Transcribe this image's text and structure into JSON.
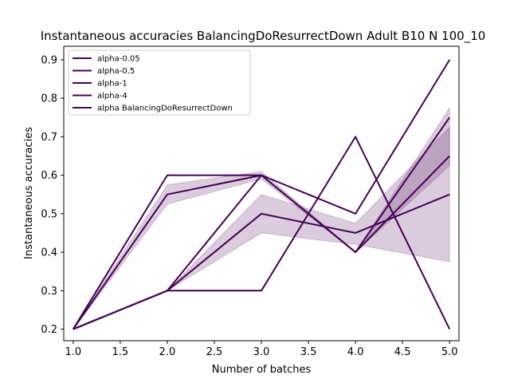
{
  "chart_data": {
    "type": "line",
    "title": "Instantaneous accuracies BalancingDoResurrectDown Adult B10 N 100_10",
    "xlabel": "Number of batches",
    "ylabel": "Instantaneous accuracies",
    "xlim": [
      0.9,
      5.1
    ],
    "ylim": [
      0.17,
      0.935
    ],
    "xticks": [
      1.0,
      1.5,
      2.0,
      2.5,
      3.0,
      3.5,
      4.0,
      4.5,
      5.0
    ],
    "xtick_labels": [
      "1.0",
      "1.5",
      "2.0",
      "2.5",
      "3.0",
      "3.5",
      "4.0",
      "4.5",
      "5.0"
    ],
    "yticks": [
      0.2,
      0.3,
      0.4,
      0.5,
      0.6,
      0.7,
      0.8,
      0.9
    ],
    "ytick_labels": [
      "0.2",
      "0.3",
      "0.4",
      "0.5",
      "0.6",
      "0.7",
      "0.8",
      "0.9"
    ],
    "grid": false,
    "legend_position": "top-left",
    "line_color": "#440154",
    "band_color": "#440154",
    "x": [
      1,
      2,
      3,
      4,
      5
    ],
    "series": [
      {
        "name": "alpha-0.05",
        "values": [
          0.2,
          0.55,
          0.6,
          0.4,
          0.75
        ]
      },
      {
        "name": "alpha-0.5",
        "values": [
          0.2,
          0.6,
          0.6,
          0.4,
          0.65
        ]
      },
      {
        "name": "alpha-1",
        "values": [
          0.2,
          0.3,
          0.5,
          0.45,
          0.55
        ]
      },
      {
        "name": "alpha-4",
        "values": [
          0.2,
          0.3,
          0.3,
          0.7,
          0.2
        ]
      },
      {
        "name": "alpha BalancingDoResurrectDown",
        "values": [
          0.2,
          0.3,
          0.6,
          0.5,
          0.9
        ]
      }
    ],
    "bands": [
      {
        "lower": [
          0.2,
          0.525,
          0.59,
          0.4,
          0.625
        ],
        "upper": [
          0.2,
          0.575,
          0.61,
          0.4,
          0.775
        ]
      },
      {
        "lower": [
          0.2,
          0.3,
          0.45,
          0.42,
          0.375
        ],
        "upper": [
          0.2,
          0.3,
          0.55,
          0.475,
          0.725
        ]
      }
    ]
  }
}
